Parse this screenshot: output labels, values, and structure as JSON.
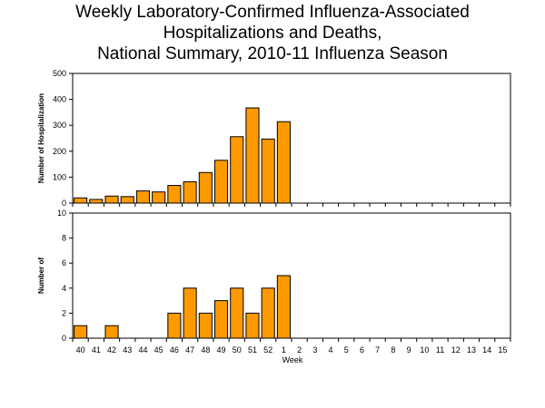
{
  "title_lines": [
    "Weekly Laboratory-Confirmed Influenza-Associated",
    "Hospitalizations and Deaths,",
    "National Summary, 2010-11 Influenza Season"
  ],
  "colors": {
    "bar_fill": "#FF9900",
    "bar_stroke": "#000000"
  },
  "chart_data": [
    {
      "type": "bar",
      "categories": [
        "40",
        "41",
        "42",
        "43",
        "44",
        "45",
        "46",
        "47",
        "48",
        "49",
        "50",
        "51",
        "52",
        "1",
        "2",
        "3",
        "4",
        "5",
        "6",
        "7",
        "8",
        "9",
        "10",
        "11",
        "12",
        "13",
        "14",
        "15"
      ],
      "values": [
        20,
        14,
        27,
        25,
        47,
        43,
        68,
        82,
        118,
        165,
        256,
        367,
        247,
        314,
        null,
        null,
        null,
        null,
        null,
        null,
        null,
        null,
        null,
        null,
        null,
        null,
        null,
        null
      ],
      "ylabel": "Number of Hospitalization",
      "ylim": [
        0,
        500
      ],
      "yticks": [
        0,
        100,
        200,
        300,
        400,
        500
      ],
      "grid": false
    },
    {
      "type": "bar",
      "categories": [
        "40",
        "41",
        "42",
        "43",
        "44",
        "45",
        "46",
        "47",
        "48",
        "49",
        "50",
        "51",
        "52",
        "1",
        "2",
        "3",
        "4",
        "5",
        "6",
        "7",
        "8",
        "9",
        "10",
        "11",
        "12",
        "13",
        "14",
        "15"
      ],
      "values": [
        1,
        0,
        1,
        0,
        0,
        0,
        2,
        4,
        2,
        3,
        4,
        2,
        4,
        5,
        null,
        null,
        null,
        null,
        null,
        null,
        null,
        null,
        null,
        null,
        null,
        null,
        null,
        null
      ],
      "ylabel": "Number of",
      "xlabel": "Week",
      "ylim": [
        0,
        10
      ],
      "yticks": [
        0,
        2,
        4,
        6,
        8,
        10
      ],
      "grid": false
    }
  ]
}
